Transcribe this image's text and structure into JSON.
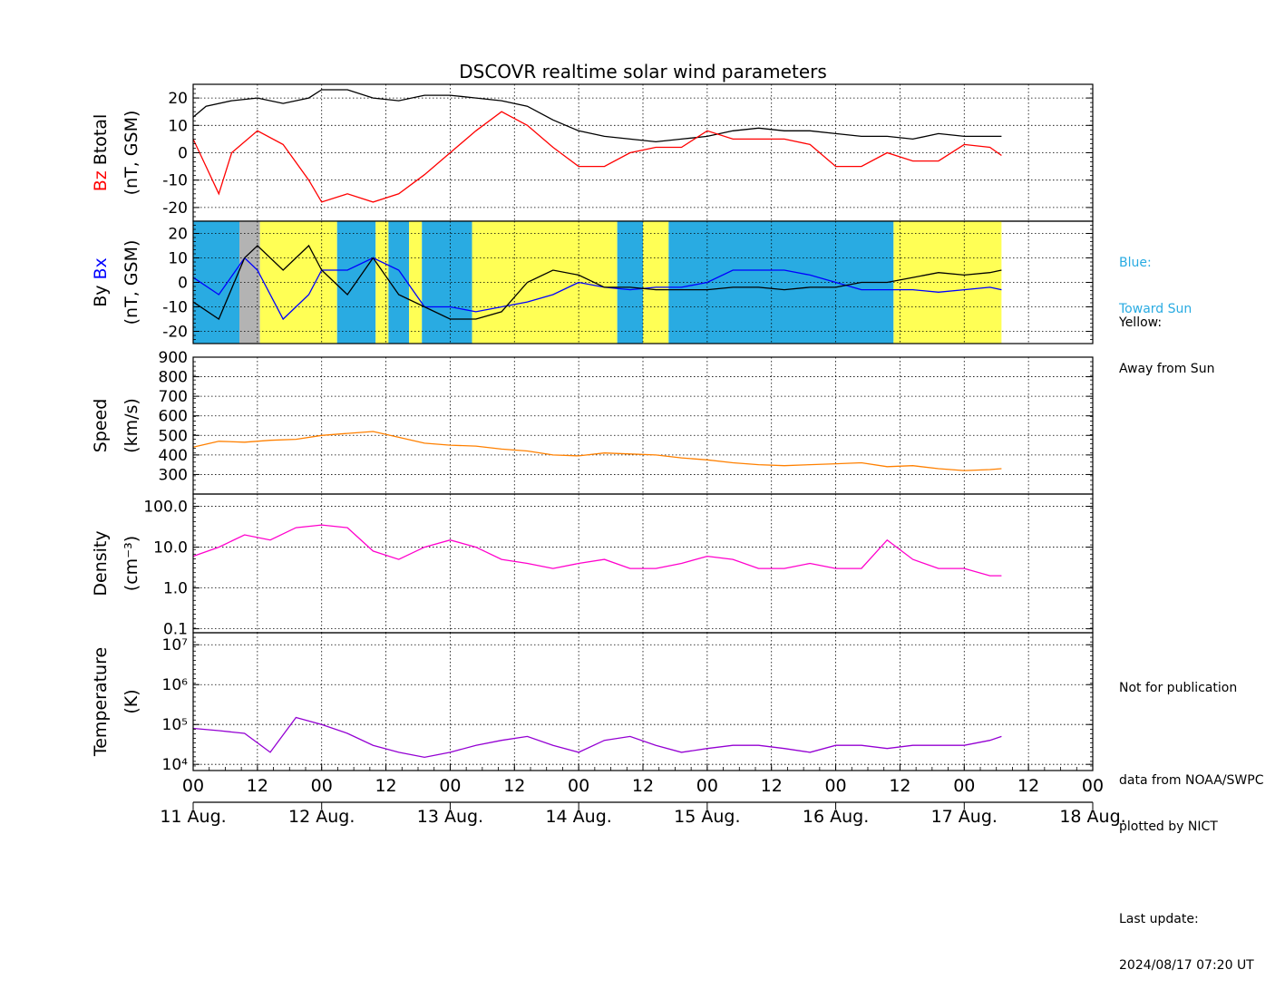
{
  "title": "DSCOVR realtime solar wind parameters",
  "x_axis": {
    "hour_ticks": [
      "00",
      "12",
      "00",
      "12",
      "00",
      "12",
      "00",
      "12",
      "00",
      "12",
      "00",
      "12",
      "00",
      "12",
      "00"
    ],
    "date_labels": [
      "11 Aug.",
      "12 Aug.",
      "13 Aug.",
      "14 Aug.",
      "15 Aug.",
      "16 Aug.",
      "17 Aug.",
      "18 Aug."
    ]
  },
  "side_notes": {
    "blue_label": "Blue:",
    "blue_desc": "Toward Sun",
    "yellow_label": "Yellow:",
    "yellow_desc": "Away from Sun",
    "not_for_publication": "Not for publication",
    "data_source_1": "data from NOAA/SWPC",
    "data_source_2": "plotted by NICT",
    "last_update_label": "Last update:",
    "last_update_value": "2024/08/17 07:20 UT"
  },
  "colors": {
    "btotal": "#000000",
    "bz": "#ff0000",
    "bx": "#0000ff",
    "by": "#000000",
    "speed": "#ff8000",
    "density": "#ff00cc",
    "temperature": "#9400d3",
    "toward_sun": "#29abe2",
    "away_from_sun": "#ffff55",
    "gap": "#b3b3b3"
  },
  "chart_data": [
    {
      "type": "line",
      "panel": "magnetic_field_magnitude",
      "ylabel_parts": [
        "Bz",
        "Btotal",
        "(nT, GSM)"
      ],
      "ylim": [
        -25,
        25
      ],
      "yticks": [
        -20,
        -10,
        0,
        10,
        20
      ],
      "x_unit": "days since 11 Aug. 00 UT",
      "grid": true,
      "series": [
        {
          "name": "Btotal",
          "x": [
            0,
            0.1,
            0.3,
            0.5,
            0.7,
            0.9,
            1.0,
            1.2,
            1.4,
            1.6,
            1.8,
            2.0,
            2.2,
            2.4,
            2.6,
            2.8,
            3.0,
            3.2,
            3.4,
            3.6,
            3.8,
            4.0,
            4.2,
            4.4,
            4.6,
            4.8,
            5.0,
            5.2,
            5.4,
            5.6,
            5.8,
            6.0,
            6.2,
            6.29
          ],
          "y": [
            13,
            17,
            19,
            20,
            18,
            20,
            23,
            23,
            20,
            19,
            21,
            21,
            20,
            19,
            17,
            12,
            8,
            6,
            5,
            4,
            5,
            6,
            8,
            9,
            8,
            8,
            7,
            6,
            6,
            5,
            7,
            6,
            6,
            6
          ]
        },
        {
          "name": "Bz",
          "x": [
            0,
            0.1,
            0.2,
            0.3,
            0.5,
            0.7,
            0.9,
            1.0,
            1.2,
            1.4,
            1.6,
            1.8,
            2.0,
            2.2,
            2.4,
            2.6,
            2.8,
            3.0,
            3.2,
            3.4,
            3.6,
            3.8,
            4.0,
            4.2,
            4.4,
            4.6,
            4.8,
            5.0,
            5.2,
            5.4,
            5.6,
            5.8,
            6.0,
            6.2,
            6.29
          ],
          "y": [
            5,
            -5,
            -15,
            0,
            8,
            3,
            -10,
            -18,
            -15,
            -18,
            -15,
            -8,
            0,
            8,
            15,
            10,
            2,
            -5,
            -5,
            0,
            2,
            2,
            8,
            5,
            5,
            5,
            3,
            -5,
            -5,
            0,
            -3,
            -3,
            3,
            2,
            -1
          ]
        }
      ]
    },
    {
      "type": "line",
      "panel": "magnetic_field_components",
      "ylabel_parts": [
        "By",
        "Bx",
        "(nT, GSM)"
      ],
      "ylim": [
        -25,
        25
      ],
      "yticks": [
        -20,
        -10,
        0,
        10,
        20
      ],
      "x_unit": "days since 11 Aug. 00 UT",
      "grid": true,
      "background_sectors": [
        {
          "start": 0.0,
          "end": 0.36,
          "sector": "toward_sun"
        },
        {
          "start": 0.36,
          "end": 0.52,
          "sector": "gap"
        },
        {
          "start": 0.52,
          "end": 1.12,
          "sector": "away_from_sun"
        },
        {
          "start": 1.12,
          "end": 1.42,
          "sector": "toward_sun"
        },
        {
          "start": 1.42,
          "end": 1.52,
          "sector": "away_from_sun"
        },
        {
          "start": 1.52,
          "end": 1.68,
          "sector": "toward_sun"
        },
        {
          "start": 1.68,
          "end": 1.78,
          "sector": "away_from_sun"
        },
        {
          "start": 1.78,
          "end": 2.17,
          "sector": "toward_sun"
        },
        {
          "start": 2.17,
          "end": 3.3,
          "sector": "away_from_sun"
        },
        {
          "start": 3.3,
          "end": 3.5,
          "sector": "toward_sun"
        },
        {
          "start": 3.5,
          "end": 3.7,
          "sector": "away_from_sun"
        },
        {
          "start": 3.7,
          "end": 5.45,
          "sector": "toward_sun"
        },
        {
          "start": 5.45,
          "end": 6.29,
          "sector": "away_from_sun"
        }
      ],
      "series": [
        {
          "name": "Bx",
          "x": [
            0,
            0.2,
            0.4,
            0.5,
            0.7,
            0.9,
            1.0,
            1.2,
            1.4,
            1.6,
            1.8,
            2.0,
            2.2,
            2.4,
            2.6,
            2.8,
            3.0,
            3.2,
            3.4,
            3.6,
            3.8,
            4.0,
            4.2,
            4.4,
            4.6,
            4.8,
            5.0,
            5.2,
            5.4,
            5.6,
            5.8,
            6.0,
            6.2,
            6.29
          ],
          "y": [
            2,
            -5,
            10,
            5,
            -15,
            -5,
            5,
            5,
            10,
            5,
            -10,
            -10,
            -12,
            -10,
            -8,
            -5,
            0,
            -2,
            -3,
            -2,
            -2,
            0,
            5,
            5,
            5,
            3,
            0,
            -3,
            -3,
            -3,
            -4,
            -3,
            -2,
            -3
          ]
        },
        {
          "name": "By",
          "x": [
            0,
            0.2,
            0.4,
            0.5,
            0.7,
            0.9,
            1.0,
            1.2,
            1.4,
            1.6,
            1.8,
            2.0,
            2.2,
            2.4,
            2.6,
            2.8,
            3.0,
            3.2,
            3.4,
            3.6,
            3.8,
            4.0,
            4.2,
            4.4,
            4.6,
            4.8,
            5.0,
            5.2,
            5.4,
            5.6,
            5.8,
            6.0,
            6.2,
            6.29
          ],
          "y": [
            -8,
            -15,
            10,
            15,
            5,
            15,
            5,
            -5,
            10,
            -5,
            -10,
            -15,
            -15,
            -12,
            0,
            5,
            3,
            -2,
            -2,
            -3,
            -3,
            -3,
            -2,
            -2,
            -3,
            -2,
            -2,
            0,
            0,
            2,
            4,
            3,
            4,
            5
          ]
        }
      ]
    },
    {
      "type": "line",
      "panel": "speed",
      "ylabel_parts": [
        "Speed",
        "(km/s)"
      ],
      "ylim": [
        200,
        900
      ],
      "yticks": [
        300,
        400,
        500,
        600,
        700,
        800,
        900
      ],
      "x_unit": "days since 11 Aug. 00 UT",
      "grid": true,
      "series": [
        {
          "name": "Speed",
          "x": [
            0,
            0.2,
            0.4,
            0.6,
            0.8,
            1.0,
            1.2,
            1.4,
            1.6,
            1.8,
            2.0,
            2.2,
            2.4,
            2.6,
            2.8,
            3.0,
            3.2,
            3.4,
            3.6,
            3.8,
            4.0,
            4.2,
            4.4,
            4.6,
            4.8,
            5.0,
            5.2,
            5.4,
            5.6,
            5.8,
            6.0,
            6.2,
            6.29
          ],
          "y": [
            440,
            470,
            465,
            475,
            480,
            500,
            510,
            520,
            490,
            460,
            450,
            445,
            430,
            420,
            400,
            395,
            410,
            405,
            400,
            385,
            375,
            360,
            350,
            345,
            350,
            355,
            360,
            340,
            345,
            330,
            320,
            325,
            330
          ]
        }
      ]
    },
    {
      "type": "line",
      "panel": "density",
      "ylabel_parts": [
        "Density",
        "(cm⁻³)"
      ],
      "yscale": "log",
      "ylim": [
        0.08,
        200
      ],
      "yticks": [
        0.1,
        1.0,
        10.0,
        100.0
      ],
      "ytick_labels": [
        "0.1",
        "1.0",
        "10.0",
        "100.0"
      ],
      "x_unit": "days since 11 Aug. 00 UT",
      "grid": true,
      "series": [
        {
          "name": "Density",
          "x": [
            0,
            0.2,
            0.4,
            0.6,
            0.8,
            1.0,
            1.2,
            1.4,
            1.6,
            1.8,
            2.0,
            2.2,
            2.4,
            2.6,
            2.8,
            3.0,
            3.2,
            3.4,
            3.6,
            3.8,
            4.0,
            4.2,
            4.4,
            4.6,
            4.8,
            5.0,
            5.2,
            5.4,
            5.6,
            5.8,
            6.0,
            6.2,
            6.29
          ],
          "y": [
            6,
            10,
            20,
            15,
            30,
            35,
            30,
            8,
            5,
            10,
            15,
            10,
            5,
            4,
            3,
            4,
            5,
            3,
            3,
            4,
            6,
            5,
            3,
            3,
            4,
            3,
            3,
            15,
            5,
            3,
            3,
            2,
            2
          ]
        }
      ]
    },
    {
      "type": "line",
      "panel": "temperature",
      "ylabel_parts": [
        "Temperature",
        "(K)"
      ],
      "yscale": "log",
      "ylim": [
        7000,
        20000000
      ],
      "yticks": [
        10000,
        100000,
        1000000,
        10000000
      ],
      "ytick_labels": [
        "10⁴",
        "10⁵",
        "10⁶",
        "10⁷"
      ],
      "x_unit": "days since 11 Aug. 00 UT",
      "grid": true,
      "series": [
        {
          "name": "Temperature",
          "x": [
            0,
            0.2,
            0.4,
            0.6,
            0.8,
            1.0,
            1.2,
            1.4,
            1.6,
            1.8,
            2.0,
            2.2,
            2.4,
            2.6,
            2.8,
            3.0,
            3.2,
            3.4,
            3.6,
            3.8,
            4.0,
            4.2,
            4.4,
            4.6,
            4.8,
            5.0,
            5.2,
            5.4,
            5.6,
            5.8,
            6.0,
            6.2,
            6.29
          ],
          "y": [
            80000,
            70000,
            60000,
            20000,
            150000,
            100000,
            60000,
            30000,
            20000,
            15000,
            20000,
            30000,
            40000,
            50000,
            30000,
            20000,
            40000,
            50000,
            30000,
            20000,
            25000,
            30000,
            30000,
            25000,
            20000,
            30000,
            30000,
            25000,
            30000,
            30000,
            30000,
            40000,
            50000
          ]
        }
      ]
    }
  ]
}
